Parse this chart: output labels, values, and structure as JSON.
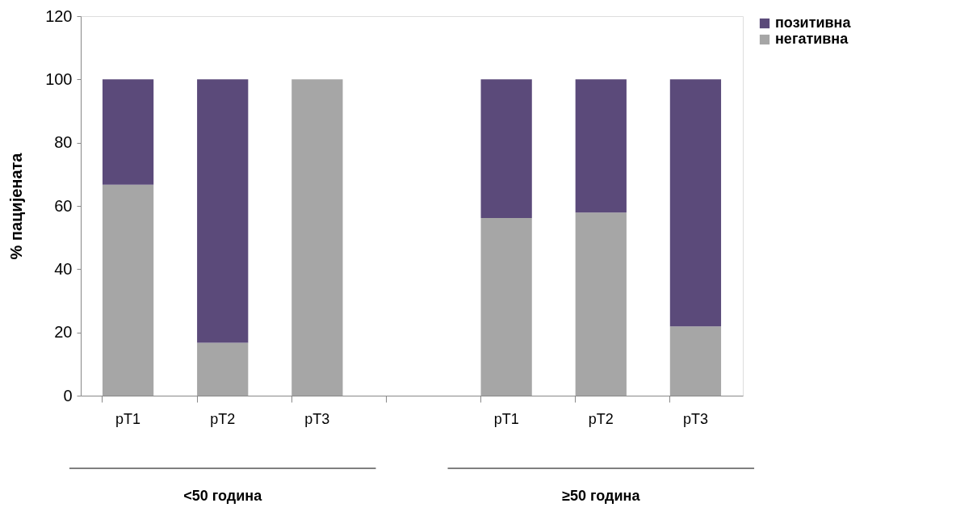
{
  "chart_data": {
    "type": "bar",
    "stacked": true,
    "categories": [
      "pT1",
      "pT2",
      "pT3",
      null,
      "pT1",
      "pT2",
      "pT3"
    ],
    "ylabel": "% пацијената",
    "ylim": [
      0,
      120
    ],
    "yticks": [
      0,
      20,
      40,
      60,
      80,
      100,
      120
    ],
    "grid": false,
    "legend": "right",
    "series": [
      {
        "name": "негативна",
        "color": "#a6a6a6",
        "values": [
          66.7,
          16.7,
          100,
          null,
          56.2,
          57.9,
          21.9
        ]
      },
      {
        "name": "позитивна",
        "color": "#5b4a7a",
        "values": [
          33.3,
          83.3,
          0,
          null,
          43.8,
          42.1,
          78.1
        ]
      }
    ],
    "annotations": [
      "<50 година",
      "≥50 година"
    ]
  }
}
